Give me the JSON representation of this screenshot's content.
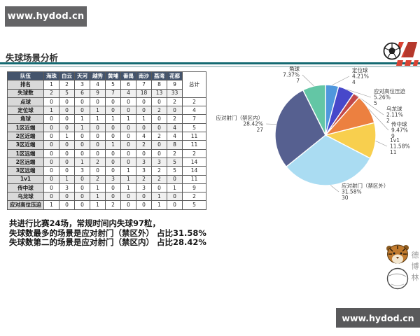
{
  "title": "失球场景分析",
  "watermarks": {
    "top": "www.hydod.cn",
    "bottom": "www.hydod.cn"
  },
  "colors": {
    "rule_teal": "#156a72",
    "table_header_bg": "#44546c",
    "label_column_bg": "#d9d9d9",
    "watermark_bg": "#646466",
    "logo_red": "#d94334"
  },
  "table": {
    "corner_header": "队伍",
    "teams": [
      "海珠",
      "白云",
      "天河",
      "越秀",
      "黄埔",
      "番禺",
      "南沙",
      "荔湾",
      "花都"
    ],
    "total_header": "总计",
    "rows": [
      {
        "label": "排名",
        "values": [
          1,
          2,
          3,
          4,
          5,
          6,
          7,
          8,
          9
        ],
        "total": null
      },
      {
        "label": "失球数",
        "values": [
          2,
          5,
          6,
          9,
          7,
          4,
          18,
          13,
          33
        ],
        "total": null
      },
      {
        "label": "点球",
        "values": [
          0,
          0,
          0,
          0,
          0,
          0,
          0,
          0,
          2
        ],
        "total": 2
      },
      {
        "label": "定位球",
        "values": [
          1,
          0,
          0,
          1,
          0,
          0,
          0,
          2,
          0
        ],
        "total": 4
      },
      {
        "label": "角球",
        "values": [
          0,
          0,
          1,
          1,
          1,
          1,
          1,
          0,
          2
        ],
        "total": 7
      },
      {
        "label": "1区近端",
        "values": [
          0,
          0,
          1,
          0,
          0,
          0,
          0,
          0,
          4
        ],
        "total": 5
      },
      {
        "label": "2区近端",
        "values": [
          0,
          1,
          0,
          0,
          0,
          0,
          4,
          2,
          4
        ],
        "total": 11
      },
      {
        "label": "3区近端",
        "values": [
          0,
          0,
          0,
          0,
          1,
          0,
          2,
          0,
          8
        ],
        "total": 11
      },
      {
        "label": "1区远端",
        "values": [
          0,
          0,
          0,
          0,
          0,
          0,
          0,
          0,
          2
        ],
        "total": 2
      },
      {
        "label": "2区远端",
        "values": [
          0,
          0,
          1,
          2,
          0,
          0,
          3,
          3,
          5
        ],
        "total": 14
      },
      {
        "label": "3区远端",
        "values": [
          0,
          0,
          3,
          0,
          0,
          1,
          3,
          2,
          5
        ],
        "total": 14
      },
      {
        "label": "1v1",
        "values": [
          0,
          1,
          0,
          2,
          3,
          1,
          2,
          2,
          0
        ],
        "total": 11
      },
      {
        "label": "传中球",
        "values": [
          0,
          3,
          0,
          1,
          0,
          1,
          3,
          0,
          1
        ],
        "total": 9
      },
      {
        "label": "乌龙球",
        "values": [
          0,
          0,
          0,
          1,
          0,
          0,
          0,
          1,
          0
        ],
        "total": 2
      },
      {
        "label": "应对高位压迫",
        "values": [
          1,
          0,
          0,
          1,
          2,
          0,
          0,
          1,
          0
        ],
        "total": 5
      }
    ]
  },
  "chart_data": {
    "type": "pie",
    "title": "",
    "total": 95,
    "start_angle": "12-oclock",
    "direction": "clockwise",
    "legend_position": "none",
    "slices": [
      {
        "name": "定位球",
        "value": 4,
        "pct": "4.21%",
        "color": "#4f97dd"
      },
      {
        "name": "应对高位压迫",
        "value": 5,
        "pct": "5.26%",
        "color": "#4748ca"
      },
      {
        "name": "乌龙球",
        "value": 2,
        "pct": "2.11%",
        "color": "#c24848"
      },
      {
        "name": "传中球",
        "value": 9,
        "pct": "9.47%",
        "color": "#ec8040"
      },
      {
        "name": "1v1",
        "value": 11,
        "pct": "11.58%",
        "color": "#f8cf4e"
      },
      {
        "name": "应对射门（禁区外）",
        "value": 30,
        "pct": "31.58%",
        "color": "#aadcf2"
      },
      {
        "name": "应对射门（禁区内）",
        "value": 27,
        "pct": "28.42%",
        "color": "#566090"
      },
      {
        "name": "角球",
        "value": 7,
        "pct": "7.37%",
        "color": "#63c6a5"
      }
    ]
  },
  "summary": {
    "lines": [
      "共进行比赛24场，常规时间内失球97粒，",
      "失球数最多的场景是应对射门（禁区外） 占比31.58%",
      "失球数第二的场景是应对射门（禁区内） 占比28.42%"
    ]
  },
  "tiger_logo_text": "德博林"
}
